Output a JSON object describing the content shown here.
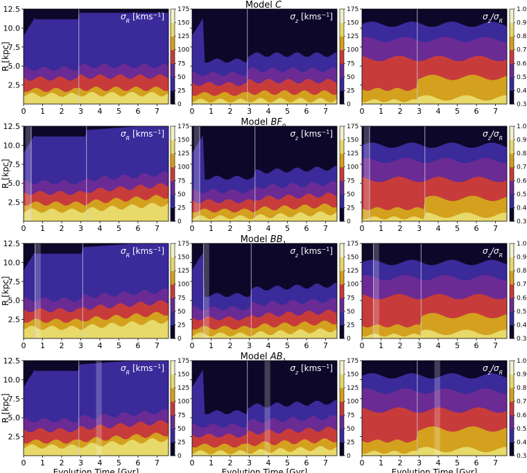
{
  "figure": {
    "xlabel": "Evolution Time [Gyr]",
    "ylabel": "R [kpc]",
    "x_ticks": [
      0,
      1,
      2,
      3,
      4,
      5,
      6,
      7
    ],
    "y_ticks": [
      2.5,
      5.0,
      7.5,
      10.0,
      12.5
    ],
    "y_tick_labels": [
      "2.5",
      "5.0",
      "7.5",
      "10.0",
      "12.5"
    ],
    "panel_labels": [
      "σ_R [kms⁻¹]",
      "σ_z [kms⁻¹]",
      "σ_z/σ_R"
    ],
    "colorbar_sigma": {
      "ticks": [
        0,
        25,
        50,
        75,
        100,
        125,
        150,
        175
      ]
    },
    "colorbar_ratio": {
      "ticks": [
        "0.3",
        "0.4",
        "0.5",
        "0.6",
        "0.7",
        "0.8",
        "0.9",
        "1.0"
      ]
    },
    "colors": {
      "level0": "#0d0829",
      "level1": "#3a2a9a",
      "level2": "#6a2b94",
      "level3": "#c73c3a",
      "level4": "#d3a11e",
      "level5": "#e7d96a",
      "level6": "#f2f0c8"
    }
  },
  "chart_data": [
    {
      "type": "heatmap",
      "title": "Model C",
      "x_range": [
        0,
        7.6
      ],
      "y_range": [
        0,
        12.5
      ],
      "vertical_lines": [
        2.9
      ],
      "shaded_bands": [],
      "panels": [
        {
          "quantity": "σ_R [kms⁻¹]",
          "contour_boundaries_R": [
            12.0,
            5.0,
            3.6,
            2.0,
            1.3
          ],
          "colorbar_range": [
            0,
            175
          ]
        },
        {
          "quantity": "σ_z [kms⁻¹]",
          "contour_boundaries_R": [
            6.5,
            4.5,
            3.0,
            1.5,
            0.5
          ],
          "colorbar_range": [
            0,
            175
          ]
        },
        {
          "quantity": "σ_z/σ_R",
          "contour_boundaries_R": [
            10.5,
            8.5,
            6.0,
            3.5,
            0.8
          ],
          "colorbar_range": [
            0.3,
            1.0
          ]
        }
      ]
    },
    {
      "type": "heatmap",
      "title": "Model BF0",
      "x_range": [
        0,
        7.6
      ],
      "y_range": [
        0,
        12.5
      ],
      "vertical_lines": [
        0.4,
        3.3
      ],
      "shaded_bands": [
        [
          0.1,
          0.4
        ]
      ],
      "panels": [
        {
          "quantity": "σ_R [kms⁻¹]",
          "contour_boundaries_R": [
            12.0,
            5.5,
            4.0,
            2.5,
            1.5
          ],
          "colorbar_range": [
            0,
            175
          ]
        },
        {
          "quantity": "σ_z [kms⁻¹]",
          "contour_boundaries_R": [
            6.5,
            4.5,
            3.0,
            1.6,
            0.6
          ],
          "colorbar_range": [
            0,
            175
          ]
        },
        {
          "quantity": "σ_z/σ_R",
          "contour_boundaries_R": [
            10.0,
            8.0,
            5.5,
            3.0,
            0.8
          ],
          "colorbar_range": [
            0.3,
            1.0
          ]
        }
      ]
    },
    {
      "type": "heatmap",
      "title": "Model BB1",
      "x_range": [
        0,
        7.6
      ],
      "y_range": [
        0,
        12.5
      ],
      "vertical_lines": [
        0.6,
        3.1
      ],
      "shaded_bands": [
        [
          0.6,
          0.9
        ]
      ],
      "panels": [
        {
          "quantity": "σ_R [kms⁻¹]",
          "contour_boundaries_R": [
            12.0,
            5.5,
            4.0,
            2.5,
            1.5
          ],
          "colorbar_range": [
            0,
            175
          ]
        },
        {
          "quantity": "σ_z [kms⁻¹]",
          "contour_boundaries_R": [
            6.5,
            4.5,
            3.0,
            1.6,
            0.6
          ],
          "colorbar_range": [
            0,
            175
          ]
        },
        {
          "quantity": "σ_z/σ_R",
          "contour_boundaries_R": [
            10.0,
            8.0,
            5.5,
            3.0,
            0.8
          ],
          "colorbar_range": [
            0.3,
            1.0
          ]
        }
      ]
    },
    {
      "type": "heatmap",
      "title": "Model AB1",
      "x_range": [
        0,
        7.6
      ],
      "y_range": [
        0,
        12.5
      ],
      "vertical_lines": [
        2.9
      ],
      "shaded_bands": [
        [
          3.8,
          4.1
        ]
      ],
      "panels": [
        {
          "quantity": "σ_R [kms⁻¹]",
          "contour_boundaries_R": [
            12.0,
            5.0,
            3.6,
            2.0,
            1.3
          ],
          "colorbar_range": [
            0,
            175
          ]
        },
        {
          "quantity": "σ_z [kms⁻¹]",
          "contour_boundaries_R": [
            6.5,
            4.5,
            3.0,
            1.5,
            0.5
          ],
          "colorbar_range": [
            0,
            175
          ]
        },
        {
          "quantity": "σ_z/σ_R",
          "contour_boundaries_R": [
            10.5,
            8.5,
            6.0,
            3.5,
            0.8
          ],
          "colorbar_range": [
            0.3,
            1.0
          ]
        }
      ]
    }
  ]
}
